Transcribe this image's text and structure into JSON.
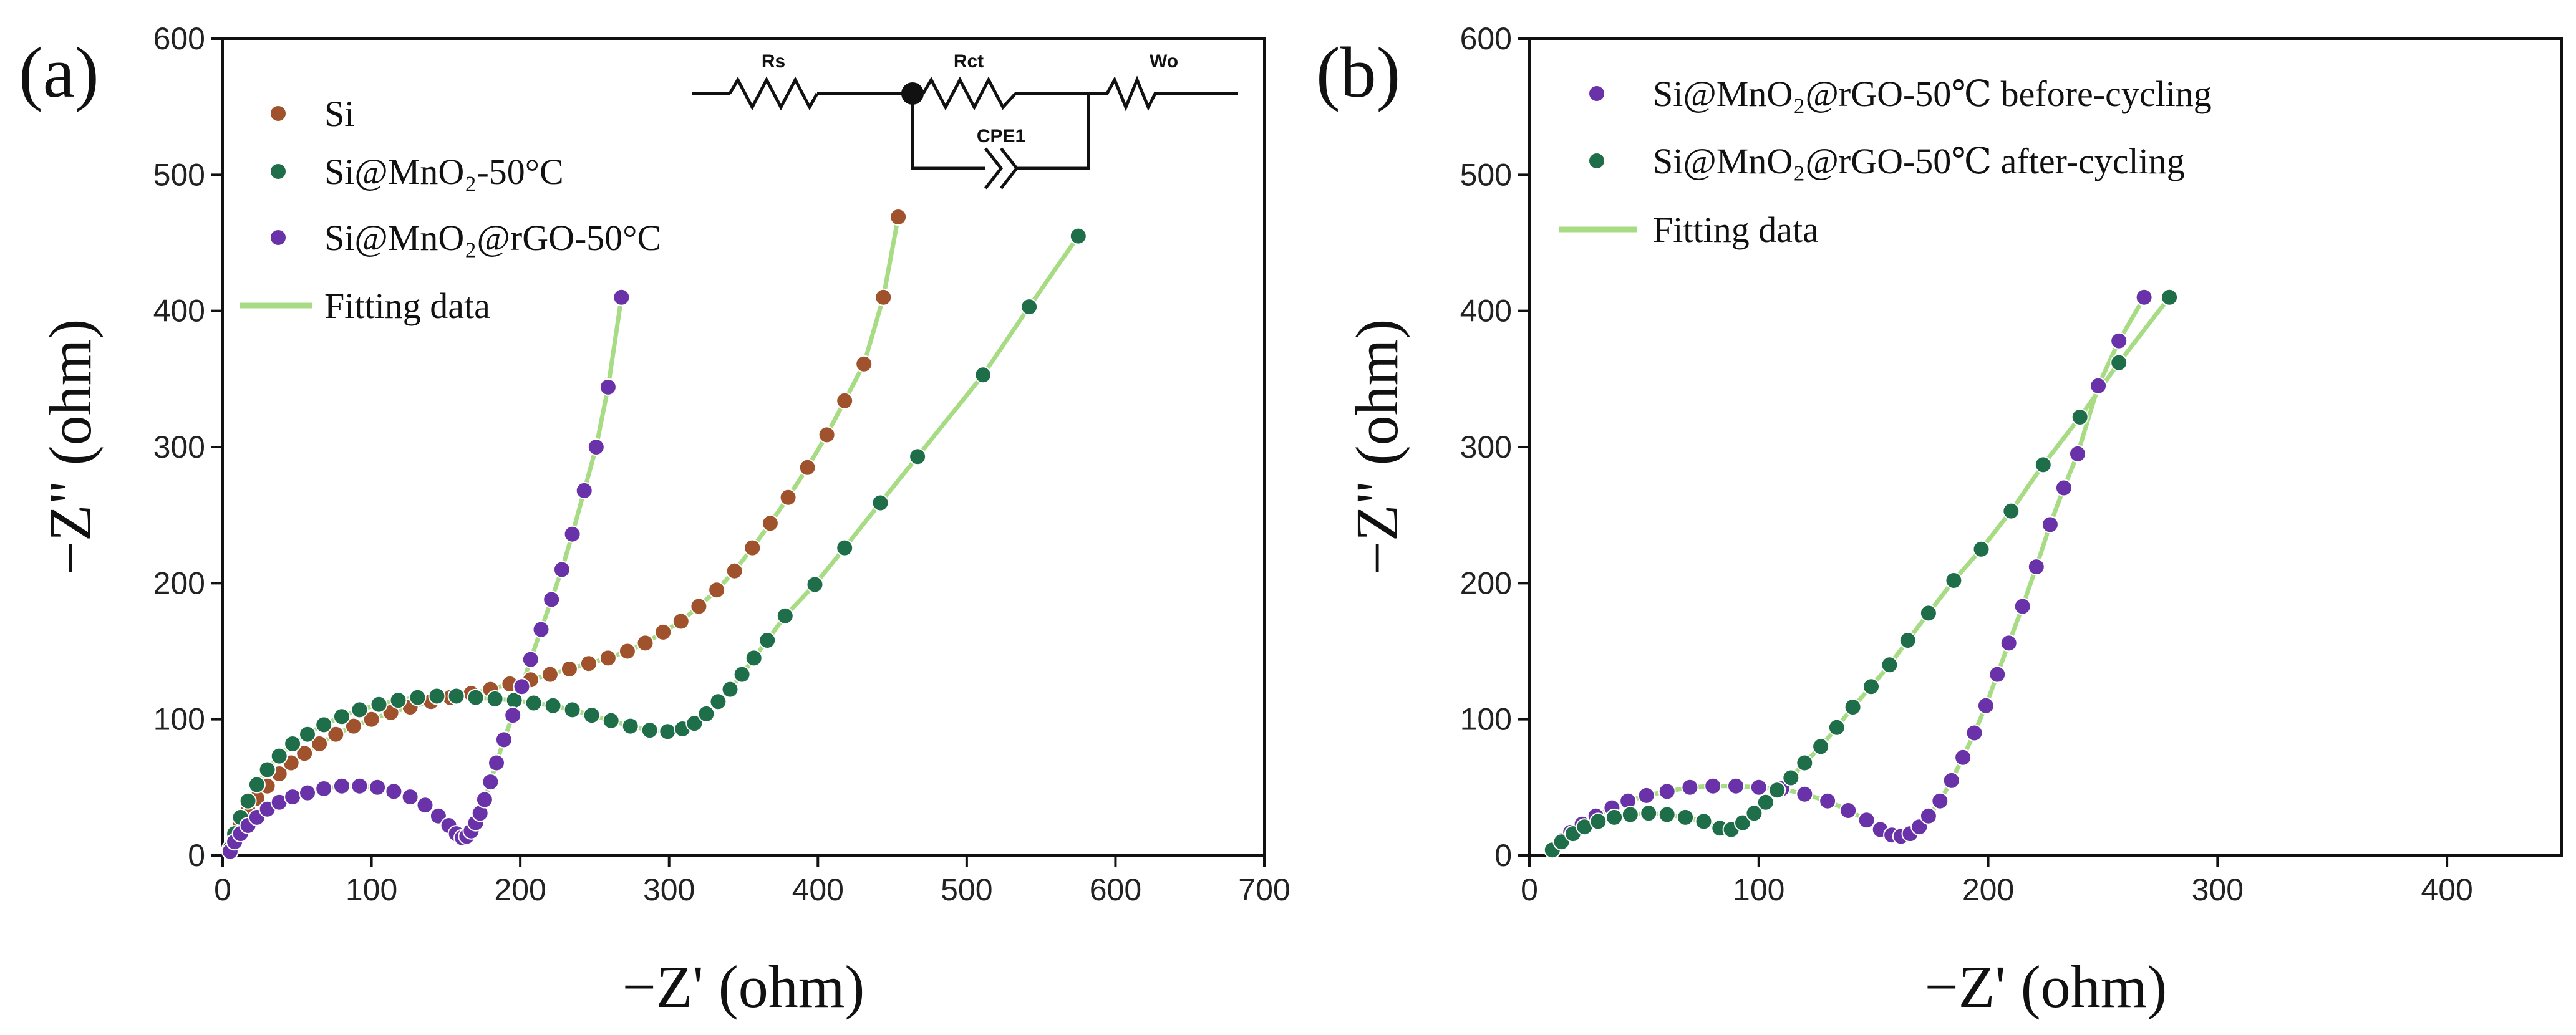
{
  "colors": {
    "si": "#a0522d",
    "si_mno2": "#1e6e4a",
    "si_mno2_rgo": "#6a32a8",
    "si_mno2_rgo_after": "#1e6e4a",
    "fit": "#a8dc84",
    "axis": "#111111"
  },
  "chart_data": [
    {
      "panel": "(a)",
      "type": "scatter",
      "xlabel": "−Z' (ohm)",
      "ylabel": "−Z\" (ohm)",
      "xlim": [
        0,
        700
      ],
      "ylim": [
        0,
        600
      ],
      "xticks": [
        "0",
        "100",
        "200",
        "300",
        "400",
        "500",
        "600",
        "700"
      ],
      "yticks": [
        "0",
        "100",
        "200",
        "300",
        "400",
        "500",
        "600"
      ],
      "legend_position": "top-left",
      "inset_circuit": {
        "labels": [
          "Rs",
          "Rct",
          "Wo",
          "CPE1"
        ]
      },
      "series": [
        {
          "name": "Si",
          "color_key": "si",
          "points": [
            [
              5,
              3
            ],
            [
              8,
              14
            ],
            [
              12,
              24
            ],
            [
              17,
              33
            ],
            [
              23,
              42
            ],
            [
              30,
              51
            ],
            [
              38,
              60
            ],
            [
              46,
              68
            ],
            [
              55,
              75
            ],
            [
              65,
              82
            ],
            [
              76,
              89
            ],
            [
              88,
              95
            ],
            [
              100,
              100
            ],
            [
              113,
              105
            ],
            [
              126,
              109
            ],
            [
              140,
              113
            ],
            [
              153,
              116
            ],
            [
              167,
              119
            ],
            [
              180,
              122
            ],
            [
              193,
              126
            ],
            [
              207,
              129
            ],
            [
              220,
              133
            ],
            [
              233,
              137
            ],
            [
              246,
              141
            ],
            [
              259,
              145
            ],
            [
              272,
              150
            ],
            [
              284,
              156
            ],
            [
              296,
              164
            ],
            [
              308,
              172
            ],
            [
              320,
              183
            ],
            [
              332,
              195
            ],
            [
              344,
              209
            ],
            [
              356,
              226
            ],
            [
              368,
              244
            ],
            [
              380,
              263
            ],
            [
              393,
              285
            ],
            [
              406,
              309
            ],
            [
              418,
              334
            ],
            [
              431,
              361
            ],
            [
              444,
              410
            ],
            [
              454,
              469
            ]
          ]
        },
        {
          "name": "Si@MnO₂-50°C",
          "color_key": "si_mno2",
          "points": [
            [
              5,
              5
            ],
            [
              8,
              16
            ],
            [
              12,
              28
            ],
            [
              17,
              40
            ],
            [
              23,
              52
            ],
            [
              30,
              63
            ],
            [
              38,
              73
            ],
            [
              47,
              82
            ],
            [
              57,
              89
            ],
            [
              68,
              96
            ],
            [
              80,
              102
            ],
            [
              92,
              107
            ],
            [
              105,
              111
            ],
            [
              118,
              114
            ],
            [
              131,
              116
            ],
            [
              144,
              117
            ],
            [
              157,
              117
            ],
            [
              170,
              116
            ],
            [
              183,
              115
            ],
            [
              196,
              114
            ],
            [
              209,
              112
            ],
            [
              222,
              110
            ],
            [
              235,
              107
            ],
            [
              248,
              103
            ],
            [
              261,
              99
            ],
            [
              274,
              95
            ],
            [
              287,
              92
            ],
            [
              299,
              91
            ],
            [
              309,
              93
            ],
            [
              317,
              97
            ],
            [
              325,
              104
            ],
            [
              333,
              113
            ],
            [
              341,
              122
            ],
            [
              349,
              133
            ],
            [
              357,
              145
            ],
            [
              366,
              158
            ],
            [
              378,
              176
            ],
            [
              398,
              199
            ],
            [
              418,
              226
            ],
            [
              442,
              259
            ],
            [
              467,
              293
            ],
            [
              511,
              353
            ],
            [
              542,
              403
            ],
            [
              575,
              455
            ]
          ]
        },
        {
          "name": "Si@MnO₂@rGO-50°C",
          "color_key": "si_mno2_rgo",
          "points": [
            [
              5,
              3
            ],
            [
              8,
              10
            ],
            [
              12,
              16
            ],
            [
              17,
              22
            ],
            [
              23,
              28
            ],
            [
              30,
              34
            ],
            [
              38,
              39
            ],
            [
              47,
              43
            ],
            [
              57,
              46
            ],
            [
              68,
              49
            ],
            [
              80,
              51
            ],
            [
              92,
              51
            ],
            [
              104,
              50
            ],
            [
              115,
              47
            ],
            [
              126,
              43
            ],
            [
              136,
              37
            ],
            [
              145,
              29
            ],
            [
              152,
              22
            ],
            [
              157,
              16
            ],
            [
              161,
              13
            ],
            [
              164,
              14
            ],
            [
              167,
              18
            ],
            [
              170,
              24
            ],
            [
              173,
              31
            ],
            [
              176,
              41
            ],
            [
              180,
              54
            ],
            [
              184,
              68
            ],
            [
              189,
              85
            ],
            [
              195,
              103
            ],
            [
              201,
              124
            ],
            [
              207,
              144
            ],
            [
              214,
              166
            ],
            [
              221,
              188
            ],
            [
              228,
              210
            ],
            [
              235,
              236
            ],
            [
              243,
              268
            ],
            [
              251,
              300
            ],
            [
              259,
              344
            ],
            [
              268,
              410
            ]
          ]
        },
        {
          "name": "Fitting data",
          "color_key": "fit",
          "style": "line"
        }
      ]
    },
    {
      "panel": "(b)",
      "type": "scatter",
      "xlabel": "−Z' (ohm)",
      "ylabel": "−Z\" (ohm)",
      "xlim": [
        0,
        450
      ],
      "ylim": [
        0,
        600
      ],
      "xticks": [
        "0",
        "100",
        "200",
        "300",
        "400"
      ],
      "yticks": [
        "0",
        "100",
        "200",
        "300",
        "400",
        "500",
        "600"
      ],
      "legend_position": "top-left",
      "series": [
        {
          "name": "Si@MnO₂@rGO-50℃ before-cycling",
          "color_key": "si_mno2_rgo",
          "points": [
            [
              10,
              4
            ],
            [
              14,
              11
            ],
            [
              18,
              17
            ],
            [
              23,
              23
            ],
            [
              29,
              29
            ],
            [
              36,
              35
            ],
            [
              43,
              40
            ],
            [
              51,
              44
            ],
            [
              60,
              47
            ],
            [
              70,
              50
            ],
            [
              80,
              51
            ],
            [
              90,
              51
            ],
            [
              100,
              50
            ],
            [
              110,
              49
            ],
            [
              120,
              45
            ],
            [
              130,
              40
            ],
            [
              139,
              33
            ],
            [
              147,
              26
            ],
            [
              153,
              19
            ],
            [
              158,
              15
            ],
            [
              162,
              14
            ],
            [
              166,
              16
            ],
            [
              170,
              21
            ],
            [
              174,
              29
            ],
            [
              179,
              40
            ],
            [
              184,
              55
            ],
            [
              189,
              72
            ],
            [
              194,
              90
            ],
            [
              199,
              110
            ],
            [
              204,
              133
            ],
            [
              209,
              156
            ],
            [
              215,
              183
            ],
            [
              221,
              212
            ],
            [
              227,
              243
            ],
            [
              233,
              270
            ],
            [
              239,
              295
            ],
            [
              248,
              345
            ],
            [
              257,
              378
            ],
            [
              268,
              410
            ]
          ]
        },
        {
          "name": "Si@MnO₂@rGO-50℃ after-cycling",
          "color_key": "si_mno2_rgo_after",
          "points": [
            [
              10,
              4
            ],
            [
              14,
              10
            ],
            [
              19,
              16
            ],
            [
              24,
              21
            ],
            [
              30,
              25
            ],
            [
              37,
              28
            ],
            [
              44,
              30
            ],
            [
              52,
              31
            ],
            [
              60,
              30
            ],
            [
              68,
              28
            ],
            [
              76,
              25
            ],
            [
              83,
              20
            ],
            [
              88,
              19
            ],
            [
              93,
              24
            ],
            [
              98,
              31
            ],
            [
              103,
              39
            ],
            [
              108,
              48
            ],
            [
              114,
              57
            ],
            [
              120,
              68
            ],
            [
              127,
              80
            ],
            [
              134,
              94
            ],
            [
              141,
              109
            ],
            [
              149,
              124
            ],
            [
              157,
              140
            ],
            [
              165,
              158
            ],
            [
              174,
              178
            ],
            [
              185,
              202
            ],
            [
              197,
              225
            ],
            [
              210,
              253
            ],
            [
              224,
              287
            ],
            [
              240,
              322
            ],
            [
              257,
              362
            ],
            [
              279,
              410
            ]
          ]
        },
        {
          "name": "Fitting data",
          "color_key": "fit",
          "style": "line"
        }
      ]
    }
  ]
}
